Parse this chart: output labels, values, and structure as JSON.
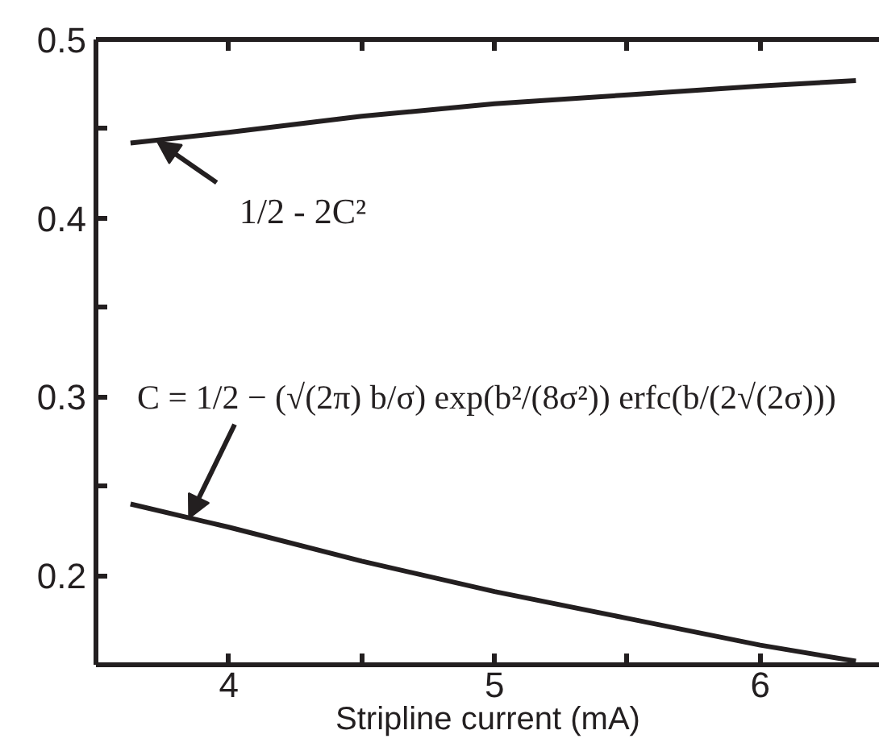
{
  "chart_data": {
    "type": "line",
    "xlabel": "Stripline current (mA)",
    "xlim": [
      3.5,
      6.45
    ],
    "ylim": [
      0.15,
      0.5
    ],
    "xticks": [
      4,
      {
        "value": 4.5,
        "label": null
      },
      5,
      {
        "value": 5.5,
        "label": null
      },
      6
    ],
    "yticks": [
      0.2,
      {
        "value": 0.25,
        "label": null
      },
      0.3,
      {
        "value": 0.35,
        "label": null
      },
      0.4,
      {
        "value": 0.45,
        "label": null
      },
      0.5
    ],
    "grid": false,
    "line_style": "solid",
    "series": [
      {
        "color": "#231f20",
        "x": [
          3.63,
          4.0,
          4.5,
          5.0,
          5.5,
          6.0,
          6.36
        ],
        "values": [
          0.442,
          0.448,
          0.457,
          0.464,
          0.469,
          0.474,
          0.477
        ]
      },
      {
        "color": "#231f20",
        "x": [
          3.63,
          4.0,
          4.5,
          5.0,
          5.5,
          6.0,
          6.36
        ],
        "values": [
          0.24,
          0.227,
          0.208,
          0.191,
          0.176,
          0.161,
          0.152
        ]
      }
    ],
    "annotations": [
      {
        "text": "1/2 - 2C²",
        "x": 3.73,
        "y": 0.443
      },
      {
        "text": "C = 1/2 − (√(2π) b/σ) exp(b²/(8σ²)) erfc(b/(2√(2σ)))",
        "x": 3.85,
        "y": 0.232
      }
    ]
  }
}
